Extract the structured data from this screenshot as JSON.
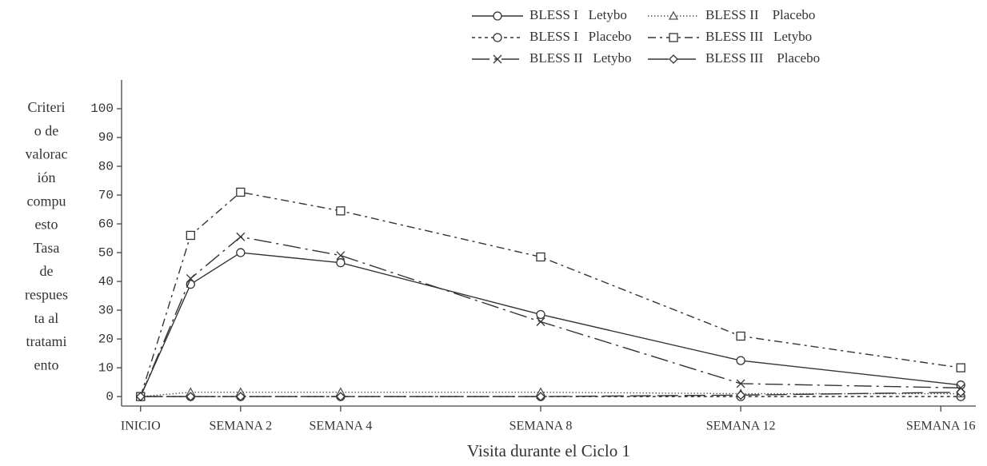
{
  "chart_data": {
    "type": "line",
    "y_label_lines": [
      "Criteri",
      "o de",
      "valorac",
      "ión",
      "compu",
      "esto",
      "Tasa",
      "de",
      "respues",
      "ta al",
      "tratami",
      "ento"
    ],
    "x_label": "Visita durante el Ciclo 1",
    "x": [
      0,
      1,
      2,
      4,
      8,
      12,
      16.4
    ],
    "xlim": [
      -0.38,
      16.7
    ],
    "xticks": [
      {
        "value": 0,
        "label": "INICIO"
      },
      {
        "value": 2,
        "label": "SEMANA 2"
      },
      {
        "value": 4,
        "label": "SEMANA 4"
      },
      {
        "value": 8,
        "label": "SEMANA 8"
      },
      {
        "value": 12,
        "label": "SEMANA 12"
      },
      {
        "value": 16,
        "label": "SEMANA 16"
      }
    ],
    "ylim": [
      -3.3,
      110
    ],
    "yticks": [
      0,
      10,
      20,
      30,
      40,
      50,
      60,
      70,
      80,
      90,
      100
    ],
    "grid": false,
    "legend": "top-right",
    "series": [
      {
        "name": "BLESS I   Letybo",
        "color": "#333333",
        "dash": "none",
        "marker": "circle",
        "values": [
          0,
          39,
          50,
          46.5,
          28.5,
          12.5,
          4
        ]
      },
      {
        "name": "BLESS I   Placebo",
        "color": "#333333",
        "dash": "4 4",
        "marker": "circle",
        "values": [
          0,
          0,
          0,
          0,
          0,
          0,
          0
        ]
      },
      {
        "name": "BLESS II   Letybo",
        "color": "#333333",
        "dash": "22 6 3 6",
        "marker": "x",
        "values": [
          0,
          41,
          55.5,
          49,
          26,
          4.5,
          3
        ]
      },
      {
        "name": "BLESS II    Placebo",
        "color": "#555555",
        "dash": "1.5 2.5",
        "marker": "triangle",
        "values": [
          0,
          1.5,
          1.5,
          1.5,
          1.5,
          1,
          1
        ]
      },
      {
        "name": "BLESS III   Letybo",
        "color": "#333333",
        "dash": "10 5 3 5",
        "marker": "square",
        "values": [
          0,
          56,
          71,
          64.5,
          48.5,
          21,
          10
        ]
      },
      {
        "name": "BLESS III    Placebo",
        "color": "#333333",
        "dash": "26 8",
        "marker": "diamond",
        "values": [
          0,
          0,
          0,
          0,
          0,
          0.5,
          1.5
        ]
      }
    ]
  }
}
